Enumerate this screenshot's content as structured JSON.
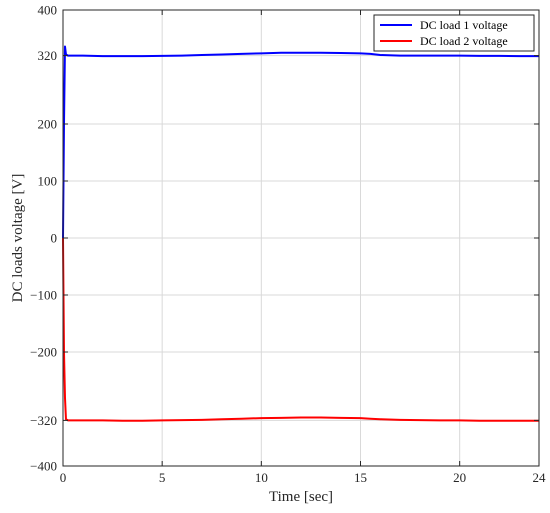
{
  "chart_data": {
    "type": "line",
    "title": "",
    "xlabel": "Time [sec]",
    "ylabel": "DC loads voltage [V]",
    "xlim": [
      0,
      24
    ],
    "ylim": [
      -400,
      400
    ],
    "xticks": [
      0,
      5,
      10,
      15,
      20,
      24
    ],
    "yticks": [
      400,
      320,
      200,
      100,
      0,
      -100,
      -200,
      -320,
      -400
    ],
    "grid": true,
    "legend_position": "top-right",
    "series": [
      {
        "name": "DC load 1 voltage",
        "color": "#0000ff",
        "x": [
          0,
          0.05,
          0.1,
          0.15,
          0.25,
          0.5,
          1,
          2,
          3,
          4,
          5,
          6,
          7,
          8,
          9,
          10,
          11,
          12,
          13,
          14,
          15,
          15.5,
          16,
          17,
          18,
          19,
          20,
          21,
          22,
          23,
          24
        ],
        "y": [
          0,
          200,
          336,
          322,
          320,
          320,
          320,
          319,
          319,
          319,
          319.5,
          320,
          321,
          322,
          323,
          324,
          325,
          325,
          325,
          324.5,
          324,
          323,
          321,
          320,
          320,
          320,
          320,
          319.5,
          319.5,
          319,
          319
        ]
      },
      {
        "name": "DC load 2 voltage",
        "color": "#ff0000",
        "x": [
          0,
          0.05,
          0.1,
          0.15,
          0.25,
          0.5,
          1,
          2,
          3,
          4,
          5,
          6,
          7,
          8,
          9,
          10,
          11,
          12,
          13,
          14,
          15,
          15.5,
          16,
          17,
          18,
          19,
          20,
          21,
          22,
          23,
          24
        ],
        "y": [
          0,
          -200,
          -280,
          -318,
          -320,
          -320,
          -320,
          -320,
          -320.5,
          -320.5,
          -320,
          -319.5,
          -319,
          -318,
          -317,
          -316,
          -315.5,
          -315,
          -315,
          -315.5,
          -316,
          -317,
          -318,
          -319,
          -319.5,
          -320,
          -320,
          -320.5,
          -320.5,
          -320.5,
          -320.5
        ]
      }
    ]
  }
}
